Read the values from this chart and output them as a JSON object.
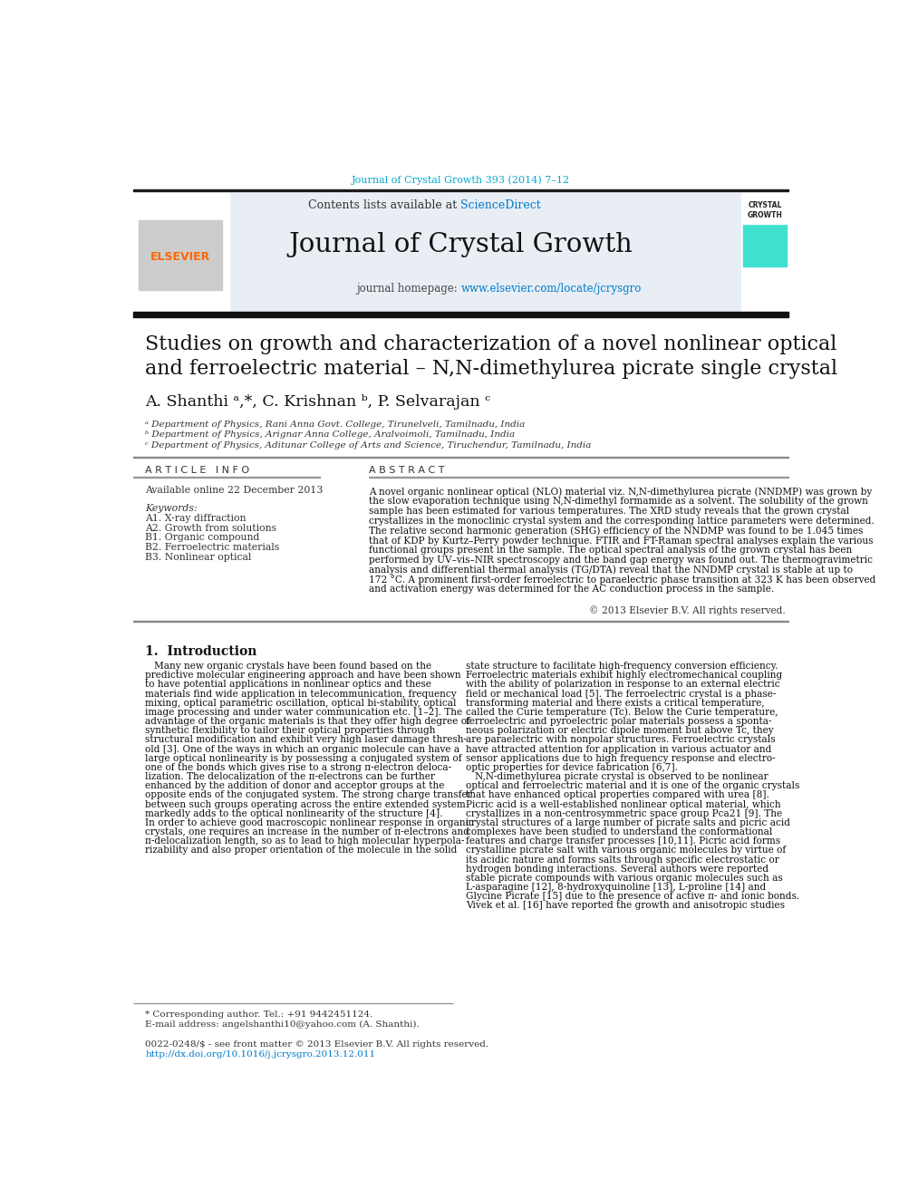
{
  "page_bg": "#ffffff",
  "top_journal_ref": "Journal of Crystal Growth 393 (2014) 7–12",
  "top_journal_color": "#00AACC",
  "header_bg": "#E8EEF4",
  "journal_title": "Journal of Crystal Growth",
  "contents_text": "Contents lists available at ",
  "sciencedirect_text": "ScienceDirect",
  "sciencedirect_color": "#007ACC",
  "journal_homepage_label": "journal homepage: ",
  "journal_url": "www.elsevier.com/locate/jcrysgro",
  "journal_url_color": "#007ACC",
  "article_title_line1": "Studies on growth and characterization of a novel nonlinear optical",
  "article_title_line2": "and ferroelectric material – N,N-dimethylurea picrate single crystal",
  "authors": "A. Shanthi ᵃ,*, C. Krishnan ᵇ, P. Selvarajan ᶜ",
  "affil_a": "ᵃ Department of Physics, Rani Anna Govt. College, Tirunelveli, Tamilnadu, India",
  "affil_b": "ᵇ Department of Physics, Arignar Anna College, Aralvoimoli, Tamilnadu, India",
  "affil_c": "ᶜ Department of Physics, Aditunar College of Arts and Science, Tiruchendur, Tamilnadu, India",
  "article_info_title": "A R T I C L E   I N F O",
  "available_online": "Available online 22 December 2013",
  "keywords_title": "Keywords:",
  "keywords": [
    "A1. X-ray diffraction",
    "A2. Growth from solutions",
    "B1. Organic compound",
    "B2. Ferroelectric materials",
    "B3. Nonlinear optical"
  ],
  "abstract_title": "A B S T R A C T",
  "abstract_text": "A novel organic nonlinear optical (NLO) material viz. N,N-dimethylurea picrate (NNDMP) was grown by\nthe slow evaporation technique using N,N-dimethyl formamide as a solvent. The solubility of the grown\nsample has been estimated for various temperatures. The XRD study reveals that the grown crystal\ncrystallizes in the monoclinic crystal system and the corresponding lattice parameters were determined.\nThe relative second harmonic generation (SHG) efficiency of the NNDMP was found to be 1.045 times\nthat of KDP by Kurtz–Perry powder technique. FTIR and FT-Raman spectral analyses explain the various\nfunctional groups present in the sample. The optical spectral analysis of the grown crystal has been\nperformed by UV–vis–NIR spectroscopy and the band gap energy was found out. The thermogravimetric\nanalysis and differential thermal analysis (TG/DTA) reveal that the NNDMP crystal is stable at up to\n172 °C. A prominent first-order ferroelectric to paraelectric phase transition at 323 K has been observed\nand activation energy was determined for the AC conduction process in the sample.",
  "copyright": "© 2013 Elsevier B.V. All rights reserved.",
  "intro_title": "1.  Introduction",
  "intro_col1": "   Many new organic crystals have been found based on the\npredictive molecular engineering approach and have been shown\nto have potential applications in nonlinear optics and these\nmaterials find wide application in telecommunication, frequency\nmixing, optical parametric oscillation, optical bi-stability, optical\nimage processing and under water communication etc. [1–2]. The\nadvantage of the organic materials is that they offer high degree of\nsynthetic flexibility to tailor their optical properties through\nstructural modification and exhibit very high laser damage thresh-\nold [3]. One of the ways in which an organic molecule can have a\nlarge optical nonlinearity is by possessing a conjugated system of\none of the bonds which gives rise to a strong π-electron deloca-\nlization. The delocalization of the π-electrons can be further\nenhanced by the addition of donor and acceptor groups at the\nopposite ends of the conjugated system. The strong charge transfer\nbetween such groups operating across the entire extended system\nmarkedly adds to the optical nonlinearity of the structure [4].\nIn order to achieve good macroscopic nonlinear response in organic\ncrystals, one requires an increase in the number of π-electrons and\nπ-delocalization length, so as to lead to high molecular hyperpola-\nrizability and also proper orientation of the molecule in the solid",
  "intro_col2": "state structure to facilitate high-frequency conversion efficiency.\nFerroelectric materials exhibit highly electromechanical coupling\nwith the ability of polarization in response to an external electric\nfield or mechanical load [5]. The ferroelectric crystal is a phase-\ntransforming material and there exists a critical temperature,\ncalled the Curie temperature (Tc). Below the Curie temperature,\nferroelectric and pyroelectric polar materials possess a sponta-\nneous polarization or electric dipole moment but above Tc, they\nare paraelectric with nonpolar structures. Ferroelectric crystals\nhave attracted attention for application in various actuator and\nsensor applications due to high frequency response and electro-\noptic properties for device fabrication [6,7].\n   N,N-dimethylurea picrate crystal is observed to be nonlinear\noptical and ferroelectric material and it is one of the organic crystals\nthat have enhanced optical properties compared with urea [8].\nPicric acid is a well-established nonlinear optical material, which\ncrystallizes in a non-centrosymmetric space group Pca21 [9]. The\ncrystal structures of a large number of picrate salts and picric acid\ncomplexes have been studied to understand the conformational\nfeatures and charge transfer processes [10,11]. Picric acid forms\ncrystalline picrate salt with various organic molecules by virtue of\nits acidic nature and forms salts through specific electrostatic or\nhydrogen bonding interactions. Several authors were reported\nstable picrate compounds with various organic molecules such as\nL-asparagine [12], 8-hydroxyquinoline [13], L-proline [14] and\nGlycine Picrate [15] due to the presence of active π- and ionic bonds.\nVivek et al. [16] have reported the growth and anisotropic studies",
  "footer_left": "* Corresponding author. Tel.: +91 9442451124.",
  "footer_email": "E-mail address: angelshanthi10@yahoo.com (A. Shanthi).",
  "footer_issn": "0022-0248/$ - see front matter © 2013 Elsevier B.V. All rights reserved.",
  "footer_doi": "http://dx.doi.org/10.1016/j.jcrysgro.2013.12.011"
}
